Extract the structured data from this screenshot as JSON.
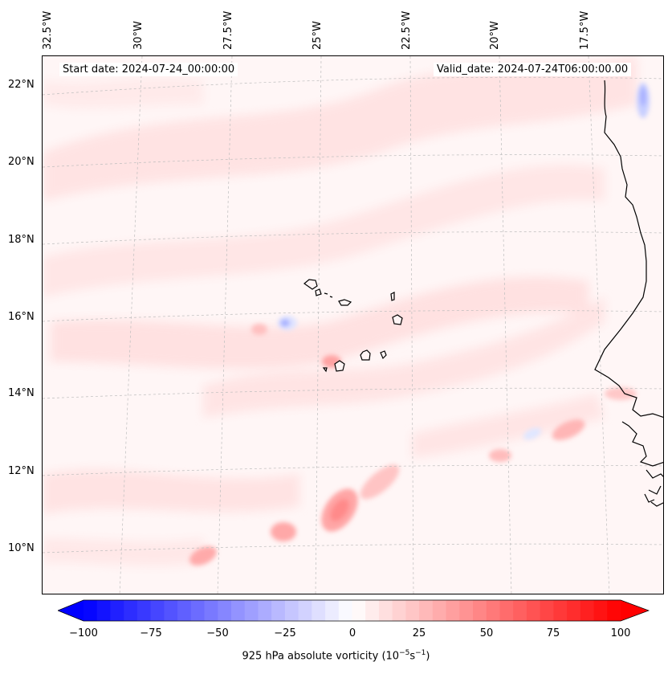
{
  "header": {
    "start_date": "Start date: 2024-07-24_00:00:00",
    "valid_date": "Valid_date: 2024-07-24T06:00:00.00"
  },
  "lon_labels": [
    "32.5°W",
    "30°W",
    "27.5°W",
    "25°W",
    "22.5°W",
    "20°W",
    "17.5°W"
  ],
  "lat_labels": [
    "22°N",
    "20°N",
    "18°N",
    "16°N",
    "14°N",
    "12°N",
    "10°N"
  ],
  "colorbar": {
    "ticks": [
      "−100",
      "−75",
      "−50",
      "−25",
      "0",
      "25",
      "50",
      "75",
      "100"
    ],
    "min": -100,
    "max": 100,
    "label": "925 hPa absolute vorticity (10",
    "label_exp1": "−5",
    "label_mid": "s",
    "label_exp2": "−1",
    "label_end": ")",
    "colors": {
      "negative": "#0000ff",
      "zero": "#ffffff",
      "positive": "#ff0000"
    }
  }
}
